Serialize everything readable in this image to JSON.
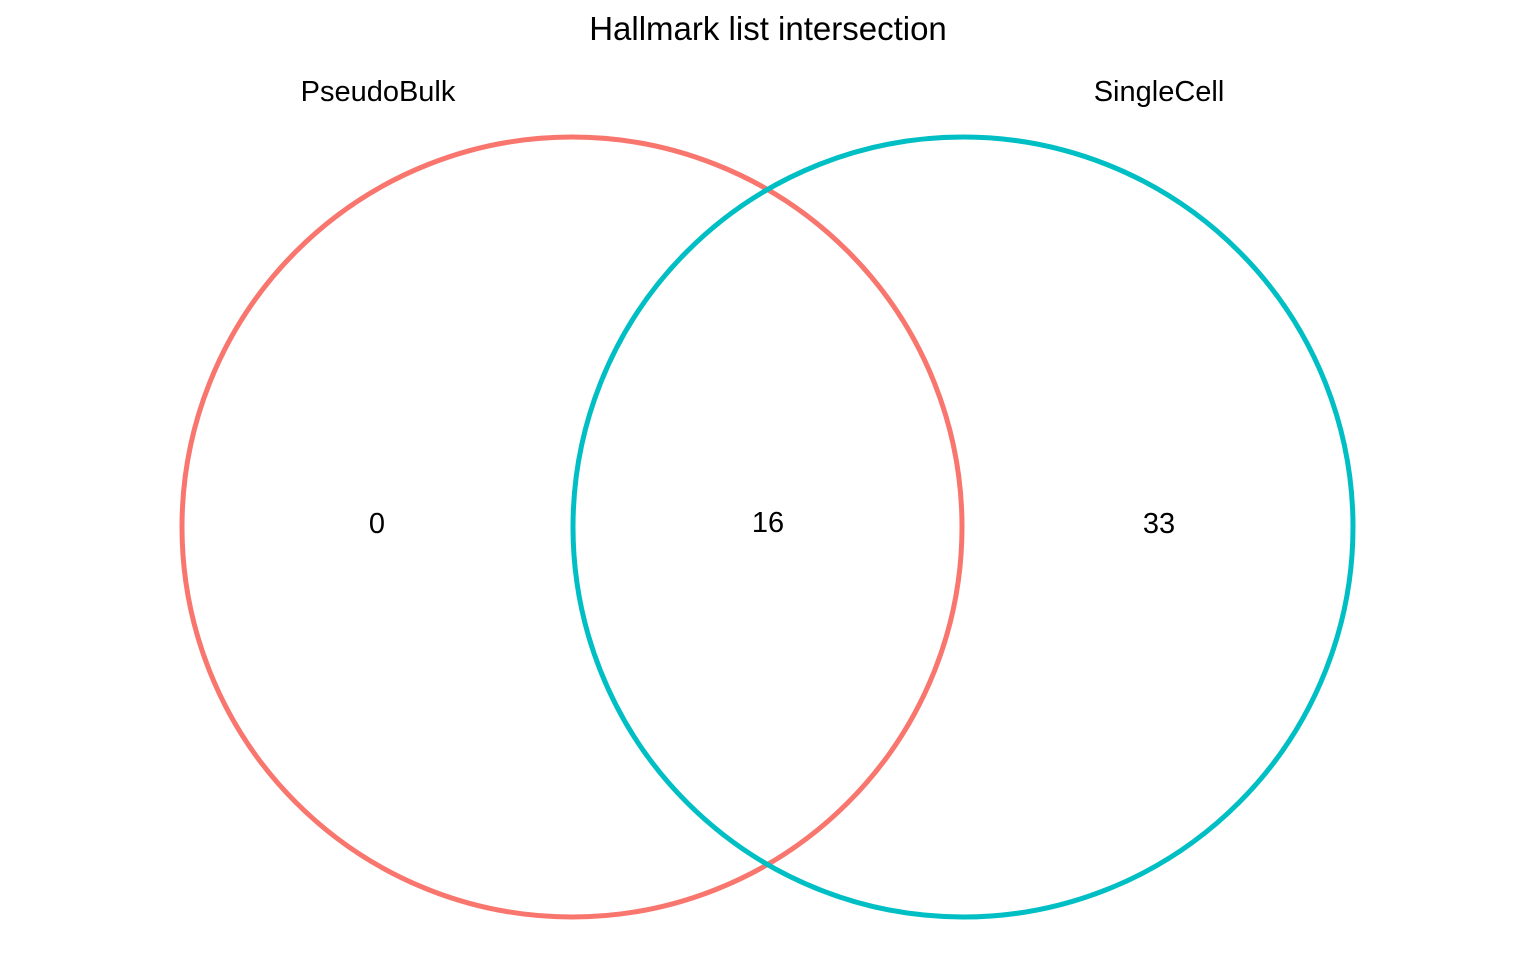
{
  "diagram": {
    "title": "Hallmark list intersection",
    "sets": [
      {
        "name": "PseudoBulk",
        "color": "#F8766D"
      },
      {
        "name": "SingleCell",
        "color": "#00BFC4"
      }
    ],
    "regions": {
      "pseudobulk_only": "0",
      "intersection": "16",
      "singlecell_only": "33"
    }
  }
}
